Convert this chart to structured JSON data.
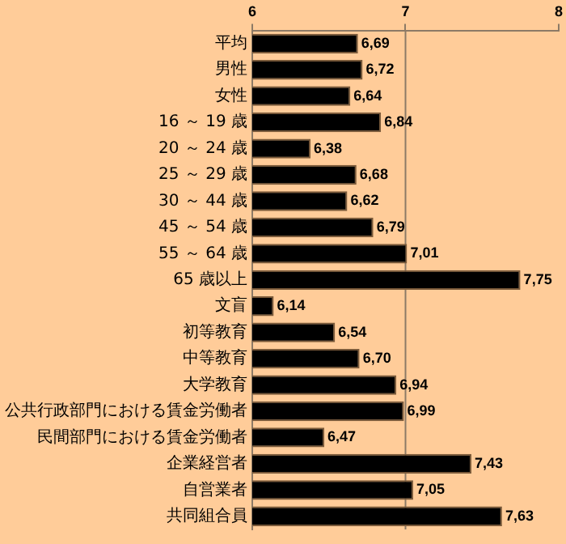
{
  "chart_data": {
    "type": "bar",
    "orientation": "horizontal",
    "categories": [
      "平均",
      "男性",
      "女性",
      "16 ～ 19 歳",
      "20 ～ 24 歳",
      "25 ～ 29 歳",
      "30 ～ 44 歳",
      "45 ～ 54 歳",
      "55 ～ 64 歳",
      "65 歳以上",
      "文盲",
      "初等教育",
      "中等教育",
      "大学教育",
      "公共行政部門における賃金労働者",
      "民間部門における賃金労働者",
      "企業経営者",
      "自営業者",
      "共同組合員"
    ],
    "values": [
      6.69,
      6.72,
      6.64,
      6.84,
      6.38,
      6.68,
      6.62,
      6.79,
      7.01,
      7.75,
      6.14,
      6.54,
      6.7,
      6.94,
      6.99,
      6.47,
      7.43,
      7.05,
      7.63
    ],
    "value_labels": [
      "6,69",
      "6,72",
      "6,64",
      "6,84",
      "6,38",
      "6,68",
      "6,62",
      "6,79",
      "7,01",
      "7,75",
      "6,14",
      "6,54",
      "6,70",
      "6,94",
      "6,99",
      "6,47",
      "7,43",
      "7,05",
      "7,63"
    ],
    "color": "#000000",
    "xlim": [
      6,
      8
    ],
    "xticks": [
      6,
      7,
      8
    ],
    "ref_lines": [
      {
        "axis": "x",
        "value": 7,
        "color": "#8c7a66"
      }
    ],
    "grid": false,
    "legend": false
  }
}
